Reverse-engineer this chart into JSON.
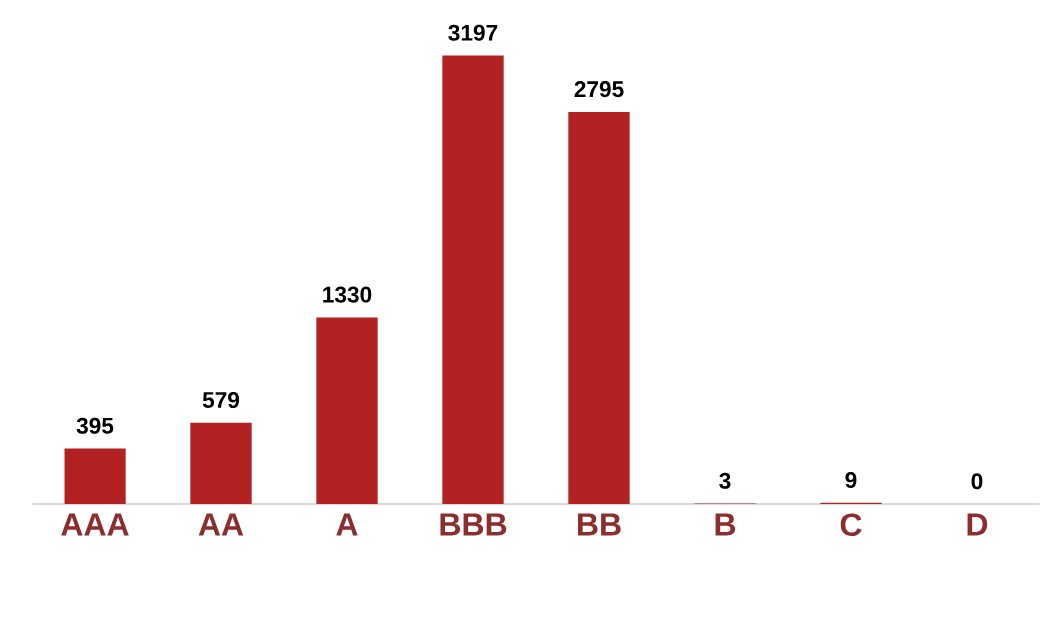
{
  "chart_data": {
    "type": "bar",
    "categories": [
      "AAA",
      "AA",
      "A",
      "BBB",
      "BB",
      "B",
      "C",
      "D"
    ],
    "values": [
      395,
      579,
      1330,
      3197,
      2795,
      3,
      9,
      0
    ],
    "color": "#b22222",
    "data_labels": true
  }
}
